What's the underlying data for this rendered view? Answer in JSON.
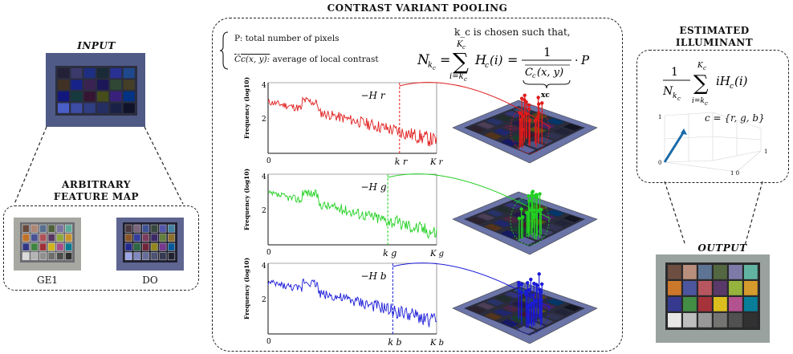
{
  "left": {
    "input_title": "INPUT",
    "feature_map_title_line1": "ARBITRARY",
    "feature_map_title_line2": "FEATURE MAP",
    "ge1_label": "GE1",
    "do_label": "DO"
  },
  "center": {
    "title": "CONTRAST VARIANT POOLING",
    "legend_p": "P: total number of pixels",
    "legend_c": "average of local contrast",
    "legend_c_sym": "C̄c(x, y):",
    "kc_text": "k_c is chosen such that,",
    "xc_label": "xc",
    "ylabel": "Frequency",
    "ylabel_unit": "(log10)",
    "channels": [
      {
        "name": "r",
        "curve_label": "−H r",
        "k_label": "k r",
        "K_label": "K r",
        "color": "#e01b1b"
      },
      {
        "name": "g",
        "curve_label": "−H g",
        "k_label": "k g",
        "K_label": "K g",
        "color": "#22d022"
      },
      {
        "name": "b",
        "curve_label": "−H b",
        "k_label": "k b",
        "K_label": "K b",
        "color": "#1a1ad8"
      }
    ],
    "tick_4": "4",
    "tick_2": "2",
    "tick_0": "0"
  },
  "right": {
    "title_line1": "ESTIMATED",
    "title_line2": "ILLUMINANT",
    "c_set": "c = {r, g, b}",
    "output_title": "OUTPUT"
  }
}
